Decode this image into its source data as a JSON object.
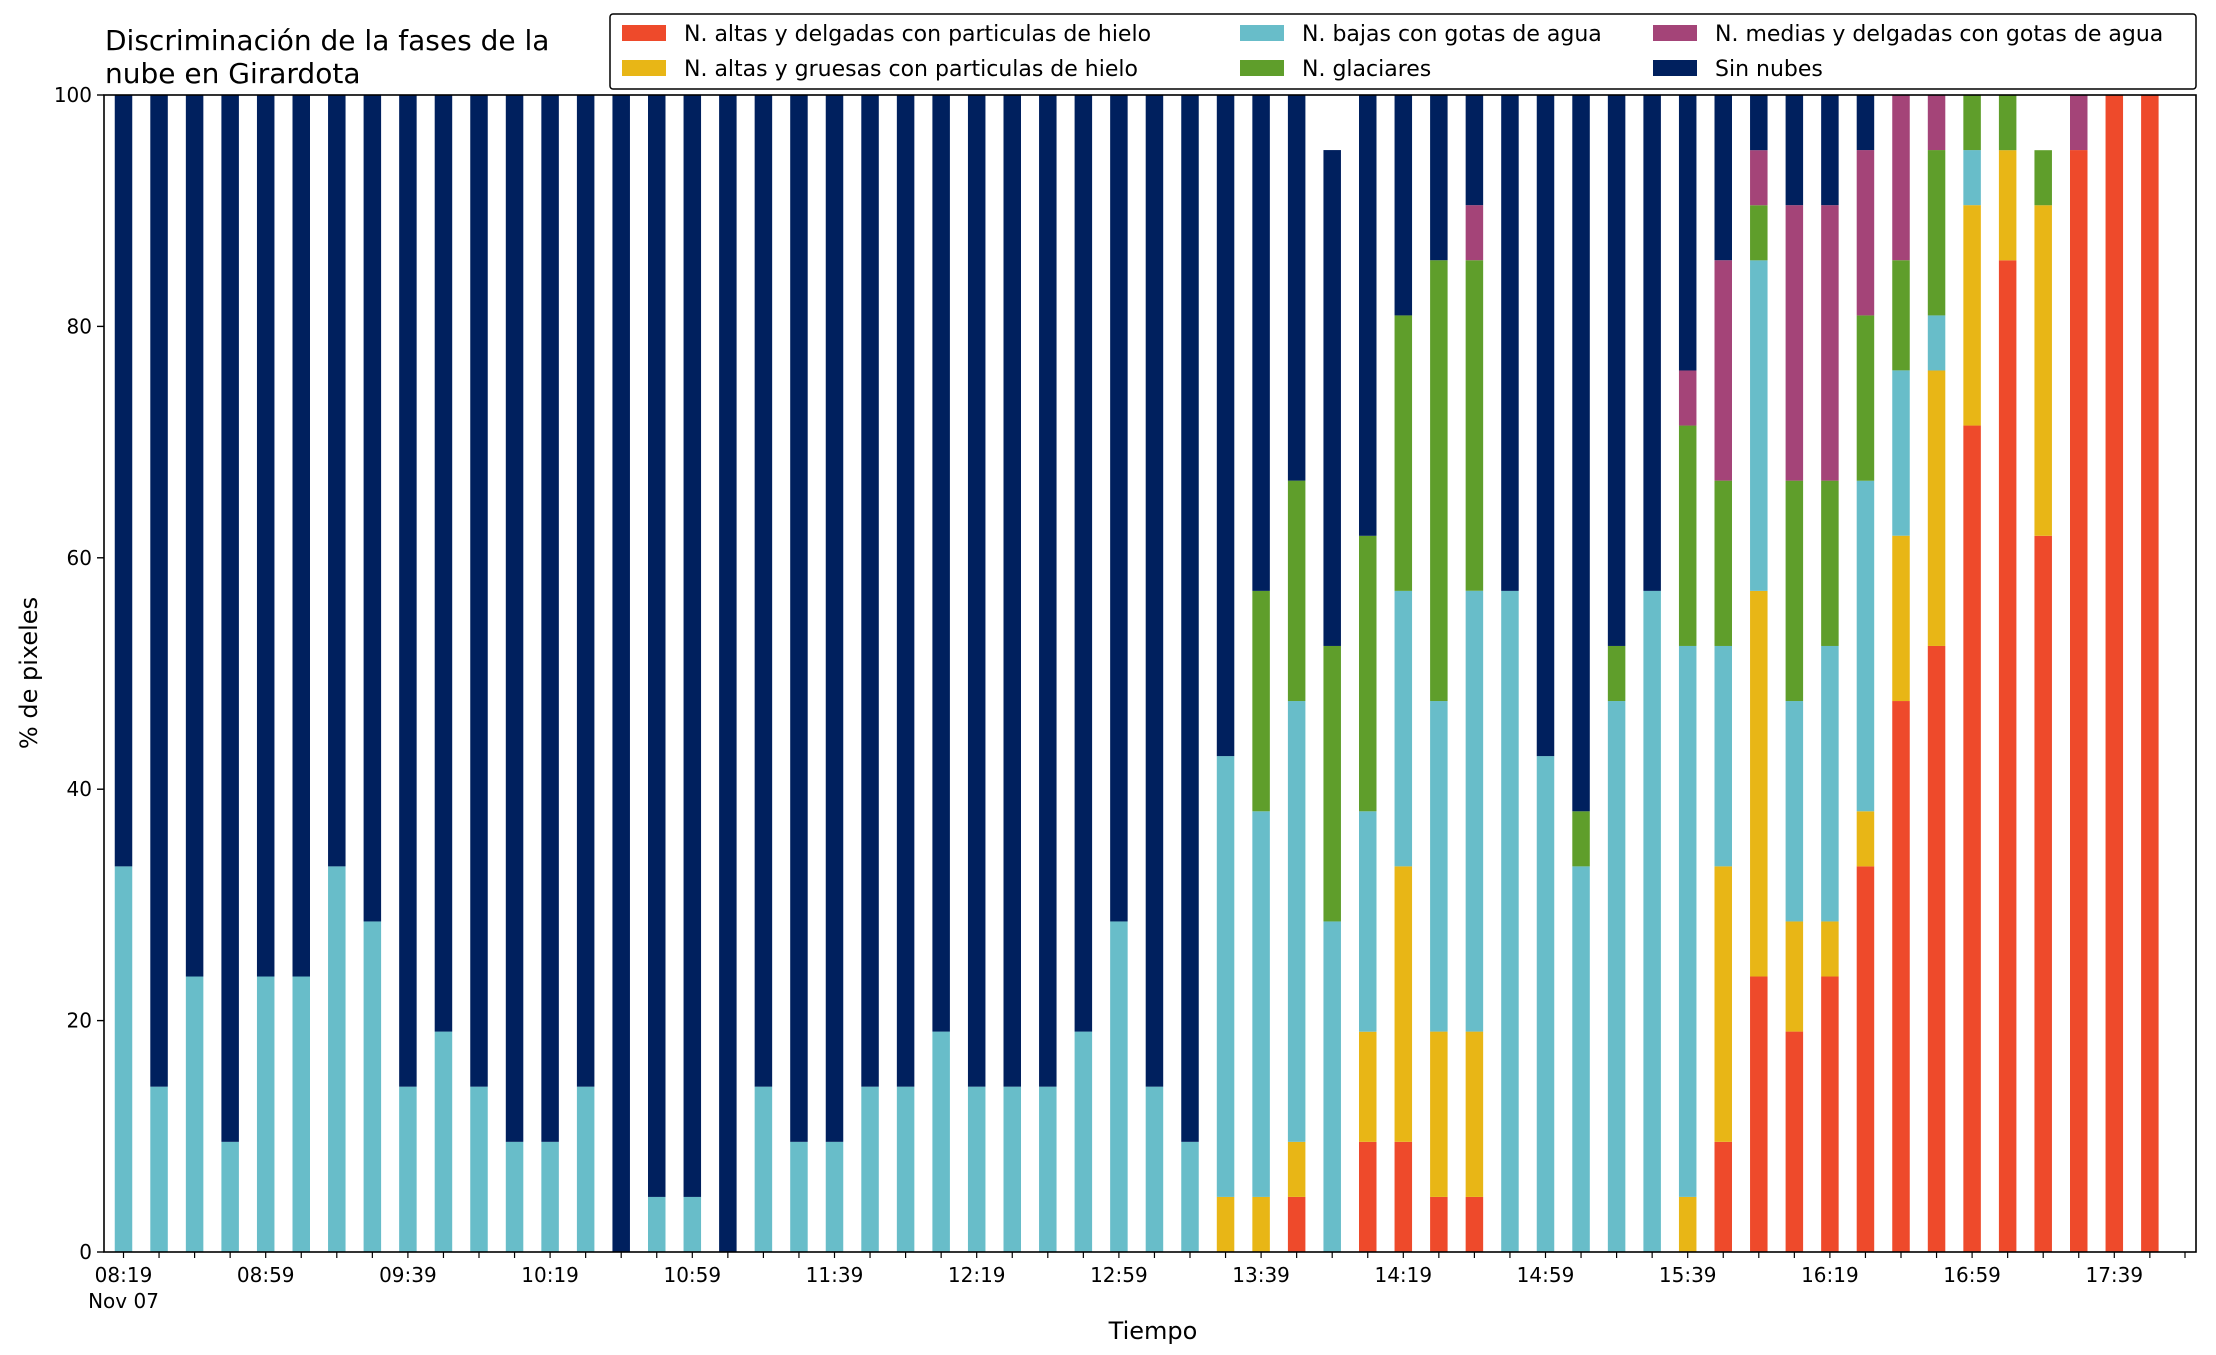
{
  "chart_data": {
    "type": "bar",
    "stacked": true,
    "title_lines": [
      "Discriminación de la fases de la",
      "nube en Girardota"
    ],
    "xlabel": "Tiempo",
    "ylabel": "% de pixeles",
    "ylim": [
      0,
      100
    ],
    "yticks": [
      0,
      20,
      40,
      60,
      80,
      100
    ],
    "xtick_labels": [
      {
        "label": "08:19",
        "index": 0
      },
      {
        "label": "08:59",
        "index": 4
      },
      {
        "label": "09:39",
        "index": 8
      },
      {
        "label": "10:19",
        "index": 12
      },
      {
        "label": "10:59",
        "index": 16
      },
      {
        "label": "11:39",
        "index": 20
      },
      {
        "label": "12:19",
        "index": 24
      },
      {
        "label": "12:59",
        "index": 28
      },
      {
        "label": "13:39",
        "index": 32
      },
      {
        "label": "14:19",
        "index": 36
      },
      {
        "label": "14:59",
        "index": 40
      },
      {
        "label": "15:39",
        "index": 44
      },
      {
        "label": "16:19",
        "index": 48
      },
      {
        "label": "16:59",
        "index": 52
      },
      {
        "label": "17:39",
        "index": 56
      }
    ],
    "xtick_sublabel": "Nov 07",
    "legend_position": "top-right",
    "grid": false,
    "categories_count": 58,
    "series": [
      {
        "name": "N. altas y delgadas con particulas de hielo",
        "color": "#ee4a2b",
        "values": [
          0,
          0,
          0,
          0,
          0,
          0,
          0,
          0,
          0,
          0,
          0,
          0,
          0,
          0,
          0,
          0,
          0,
          0,
          0,
          0,
          0,
          0,
          0,
          0,
          0,
          0,
          0,
          0,
          0,
          0,
          0,
          0,
          0,
          4.76,
          0,
          9.52,
          9.52,
          4.76,
          4.76,
          0,
          0,
          0,
          0,
          0,
          0,
          9.52,
          23.81,
          19.05,
          23.81,
          33.33,
          47.62,
          52.38,
          71.43,
          85.71,
          61.9,
          95.24,
          100,
          100
        ]
      },
      {
        "name": "N. altas y gruesas con particulas de hielo",
        "color": "#e8b616",
        "values": [
          0,
          0,
          0,
          0,
          0,
          0,
          0,
          0,
          0,
          0,
          0,
          0,
          0,
          0,
          0,
          0,
          0,
          0,
          0,
          0,
          0,
          0,
          0,
          0,
          0,
          0,
          0,
          0,
          0,
          0,
          0,
          4.76,
          4.76,
          4.76,
          0,
          9.52,
          23.81,
          14.29,
          14.29,
          0,
          0,
          0,
          0,
          0,
          4.76,
          23.81,
          33.33,
          9.52,
          4.76,
          4.76,
          14.29,
          23.81,
          19.05,
          9.52,
          28.57,
          0,
          0,
          0
        ]
      },
      {
        "name": "N. bajas con gotas de agua",
        "color": "#68bdc9",
        "values": [
          33.33,
          14.29,
          23.81,
          9.52,
          23.81,
          23.81,
          33.33,
          28.57,
          14.29,
          19.05,
          14.29,
          9.52,
          9.52,
          14.29,
          0,
          4.76,
          4.76,
          0,
          14.29,
          9.52,
          9.52,
          14.29,
          14.29,
          19.05,
          14.29,
          14.29,
          14.29,
          19.05,
          28.57,
          14.29,
          9.52,
          38.1,
          33.33,
          38.1,
          28.57,
          19.05,
          23.81,
          28.57,
          38.1,
          57.14,
          42.86,
          33.33,
          47.62,
          57.14,
          47.62,
          19.05,
          28.57,
          19.05,
          23.81,
          28.57,
          14.29,
          4.76,
          4.76,
          0,
          0,
          0,
          0,
          0
        ]
      },
      {
        "name": "N. glaciares",
        "color": "#5f9e2b",
        "values": [
          0,
          0,
          0,
          0,
          0,
          0,
          0,
          0,
          0,
          0,
          0,
          0,
          0,
          0,
          0,
          0,
          0,
          0,
          0,
          0,
          0,
          0,
          0,
          0,
          0,
          0,
          0,
          0,
          0,
          0,
          0,
          0,
          19.05,
          19.05,
          23.81,
          23.81,
          23.81,
          38.1,
          28.57,
          0,
          0,
          4.76,
          4.76,
          0,
          19.05,
          14.29,
          4.76,
          19.05,
          14.29,
          14.29,
          9.52,
          14.29,
          4.76,
          4.76,
          4.76,
          0,
          0,
          0
        ]
      },
      {
        "name": "N. medias y delgadas con gotas de agua",
        "color": "#a44478",
        "values": [
          0,
          0,
          0,
          0,
          0,
          0,
          0,
          0,
          0,
          0,
          0,
          0,
          0,
          0,
          0,
          0,
          0,
          0,
          0,
          0,
          0,
          0,
          0,
          0,
          0,
          0,
          0,
          0,
          0,
          0,
          0,
          0,
          0,
          0,
          0,
          0,
          0,
          0,
          4.76,
          0,
          0,
          0,
          0,
          0,
          4.76,
          19.05,
          4.76,
          23.81,
          23.81,
          14.29,
          14.29,
          4.76,
          0,
          0,
          0,
          4.76,
          0,
          0
        ]
      },
      {
        "name": "Sin nubes",
        "color": "#00205e",
        "values": [
          66.67,
          85.71,
          76.19,
          90.48,
          76.19,
          76.19,
          66.67,
          71.43,
          85.71,
          80.95,
          85.71,
          90.48,
          90.48,
          85.71,
          100,
          95.24,
          95.24,
          100,
          85.71,
          90.48,
          90.48,
          85.71,
          85.71,
          80.95,
          85.71,
          85.71,
          85.71,
          80.95,
          71.43,
          85.71,
          90.48,
          61.9,
          42.86,
          33.33,
          42.86,
          38.1,
          19.05,
          14.29,
          9.52,
          42.86,
          57.14,
          61.9,
          47.62,
          42.86,
          23.81,
          14.29,
          4.76,
          9.52,
          9.52,
          4.76,
          0,
          0,
          0,
          0,
          0,
          0,
          0,
          0
        ]
      }
    ]
  }
}
